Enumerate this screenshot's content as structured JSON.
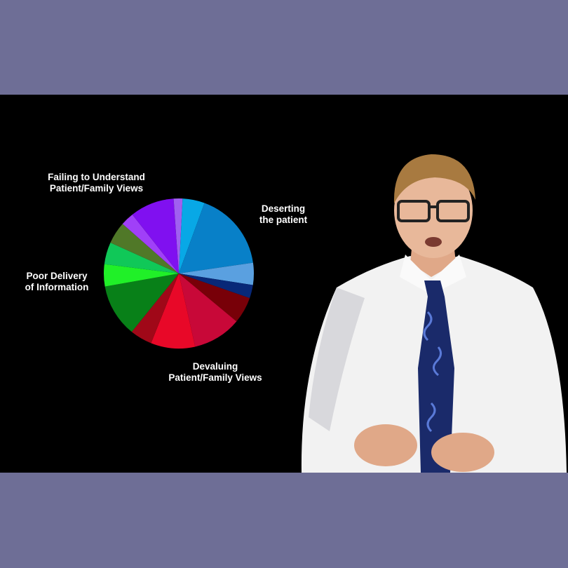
{
  "chart_data": {
    "type": "pie",
    "title": "",
    "slices": [
      {
        "label": "",
        "value": 5,
        "color": "#08a8e6"
      },
      {
        "label": "",
        "value": 18,
        "color": "#0880c8"
      },
      {
        "label": "",
        "value": 5,
        "color": "#5aa0e0"
      },
      {
        "label": "",
        "value": 3,
        "color": "#082878"
      },
      {
        "label": "",
        "value": 6,
        "color": "#780008"
      },
      {
        "label": "",
        "value": 11,
        "color": "#c80838"
      },
      {
        "label": "",
        "value": 10,
        "color": "#e80828"
      },
      {
        "label": "",
        "value": 5,
        "color": "#a00818"
      },
      {
        "label": "",
        "value": 12,
        "color": "#088018"
      },
      {
        "label": "",
        "value": 5,
        "color": "#20f028"
      },
      {
        "label": "",
        "value": 5,
        "color": "#10c858"
      },
      {
        "label": "",
        "value": 5,
        "color": "#507828"
      },
      {
        "label": "",
        "value": 3,
        "color": "#a040f8"
      },
      {
        "label": "",
        "value": 10,
        "color": "#8010f0"
      },
      {
        "label": "",
        "value": 2,
        "color": "#a060f0"
      }
    ],
    "annotations": [
      {
        "id": "failing",
        "text": [
          "Failing to Understand",
          "Patient/Family Views"
        ]
      },
      {
        "id": "deserting",
        "text": [
          "Deserting",
          "the patient"
        ]
      },
      {
        "id": "poor",
        "text": [
          "Poor Delivery",
          "of Information"
        ]
      },
      {
        "id": "devaluing",
        "text": [
          "Devaluing",
          "Patient/Family Views"
        ]
      }
    ]
  },
  "colors": {
    "frame_band": "#6e6e96",
    "video_background": "#000000",
    "shirt": "#f2f2f2",
    "tie": "#1a2a6a",
    "skin": "#e8b89a",
    "hair": "#a87a40"
  }
}
